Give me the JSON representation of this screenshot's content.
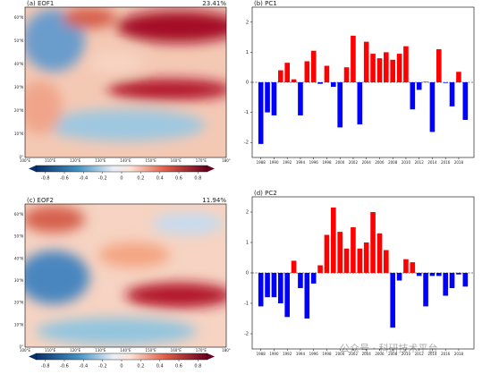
{
  "chart_data": [
    {
      "type": "bar",
      "title": "(b) PC1",
      "categories": [
        "1988",
        null,
        "1990",
        null,
        "1992",
        null,
        "1994",
        null,
        "1996",
        null,
        "1998",
        null,
        "2000",
        null,
        "2002",
        null,
        "2004",
        null,
        "2006",
        null,
        "2008",
        null,
        "2010",
        null,
        "2012",
        null,
        "2014",
        null,
        "2016",
        null,
        "2018",
        null
      ],
      "values": [
        -2.05,
        -1.0,
        -1.1,
        0.4,
        0.65,
        0.1,
        -1.1,
        0.7,
        1.05,
        -0.05,
        0.55,
        -0.15,
        -1.5,
        0.5,
        1.55,
        -1.4,
        1.35,
        0.95,
        0.8,
        1.0,
        0.75,
        0.95,
        1.2,
        -0.9,
        -0.25,
        0.02,
        -1.65,
        1.1,
        -0.02,
        -0.8,
        0.35,
        -1.25
      ],
      "ylim": [
        -2.5,
        2.5
      ],
      "yticks": [
        -2,
        -1,
        0,
        1,
        2
      ],
      "positive_color": "#ff0000",
      "negative_color": "#0000ff"
    },
    {
      "type": "bar",
      "title": "(d) PC2",
      "categories": [
        "1988",
        null,
        "1990",
        null,
        "1992",
        null,
        "1994",
        null,
        "1996",
        null,
        "1998",
        null,
        "2000",
        null,
        "2002",
        null,
        "2004",
        null,
        "2006",
        null,
        "2008",
        null,
        "2010",
        null,
        "2012",
        null,
        "2014",
        null,
        "2016",
        null,
        "2018",
        null
      ],
      "values": [
        -1.1,
        -0.8,
        -0.8,
        -1.0,
        -1.45,
        0.4,
        -0.5,
        -1.5,
        -0.35,
        0.25,
        1.25,
        2.15,
        1.35,
        0.8,
        1.5,
        0.8,
        1.0,
        2.0,
        1.3,
        0.75,
        -1.8,
        -0.25,
        0.45,
        0.35,
        -0.1,
        -1.1,
        -0.1,
        -0.1,
        -0.75,
        -0.5,
        -0.05,
        -0.45
      ],
      "ylim": [
        -2.5,
        2.5
      ],
      "yticks": [
        -2,
        -1,
        0,
        1,
        2
      ],
      "positive_color": "#ff0000",
      "negative_color": "#0000ff"
    }
  ],
  "maps": [
    {
      "title": "(a) EOF1",
      "variance": "23.41%"
    },
    {
      "title": "(c) EOF2",
      "variance": "11.94%"
    }
  ],
  "map_lat_labels": [
    "60°N",
    "50°N",
    "40°N",
    "30°N",
    "20°N",
    "10°N",
    "0°"
  ],
  "map_lon_labels": [
    "100°E",
    "110°E",
    "120°E",
    "130°E",
    "140°E",
    "150°E",
    "160°E",
    "170°E",
    "180°"
  ],
  "colorbar": {
    "ticks": [
      -0.8,
      -0.6,
      -0.4,
      -0.2,
      0,
      0.2,
      0.4,
      0.6,
      0.8
    ],
    "clim": [
      -0.9,
      0.9
    ]
  },
  "watermark": "公众号 · 科研技术平台"
}
